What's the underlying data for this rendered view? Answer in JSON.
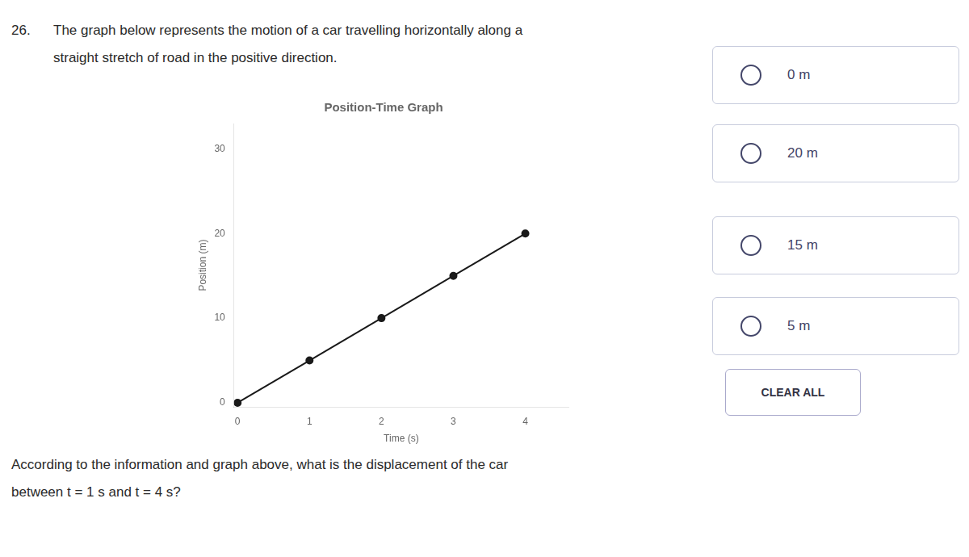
{
  "chart_data": {
    "type": "line",
    "title": "Position-Time Graph",
    "xlabel": "Time (s)",
    "ylabel": "Position (m)",
    "x": [
      0,
      1,
      2,
      3,
      4
    ],
    "values": [
      0,
      5,
      10,
      15,
      20
    ],
    "color": "#1a1a1a",
    "marker": "circle",
    "xlim": [
      -0.05,
      4.6
    ],
    "ylim": [
      -0.5,
      33
    ],
    "xticks": [
      0,
      1,
      2,
      3,
      4
    ],
    "yticks": [
      0,
      10,
      20,
      30
    ],
    "grid": false,
    "annotations": [
      "26.",
      "The graph below represents the motion of a car travelling horizontally along a",
      "straight stretch of road in the positive direction.",
      "According to the information and graph above, what is the displacement of the car",
      "between t = 1 s and t = 4 s?",
      "0 m",
      "20 m",
      "15 m",
      "5 m",
      "CLEAR ALL"
    ]
  }
}
